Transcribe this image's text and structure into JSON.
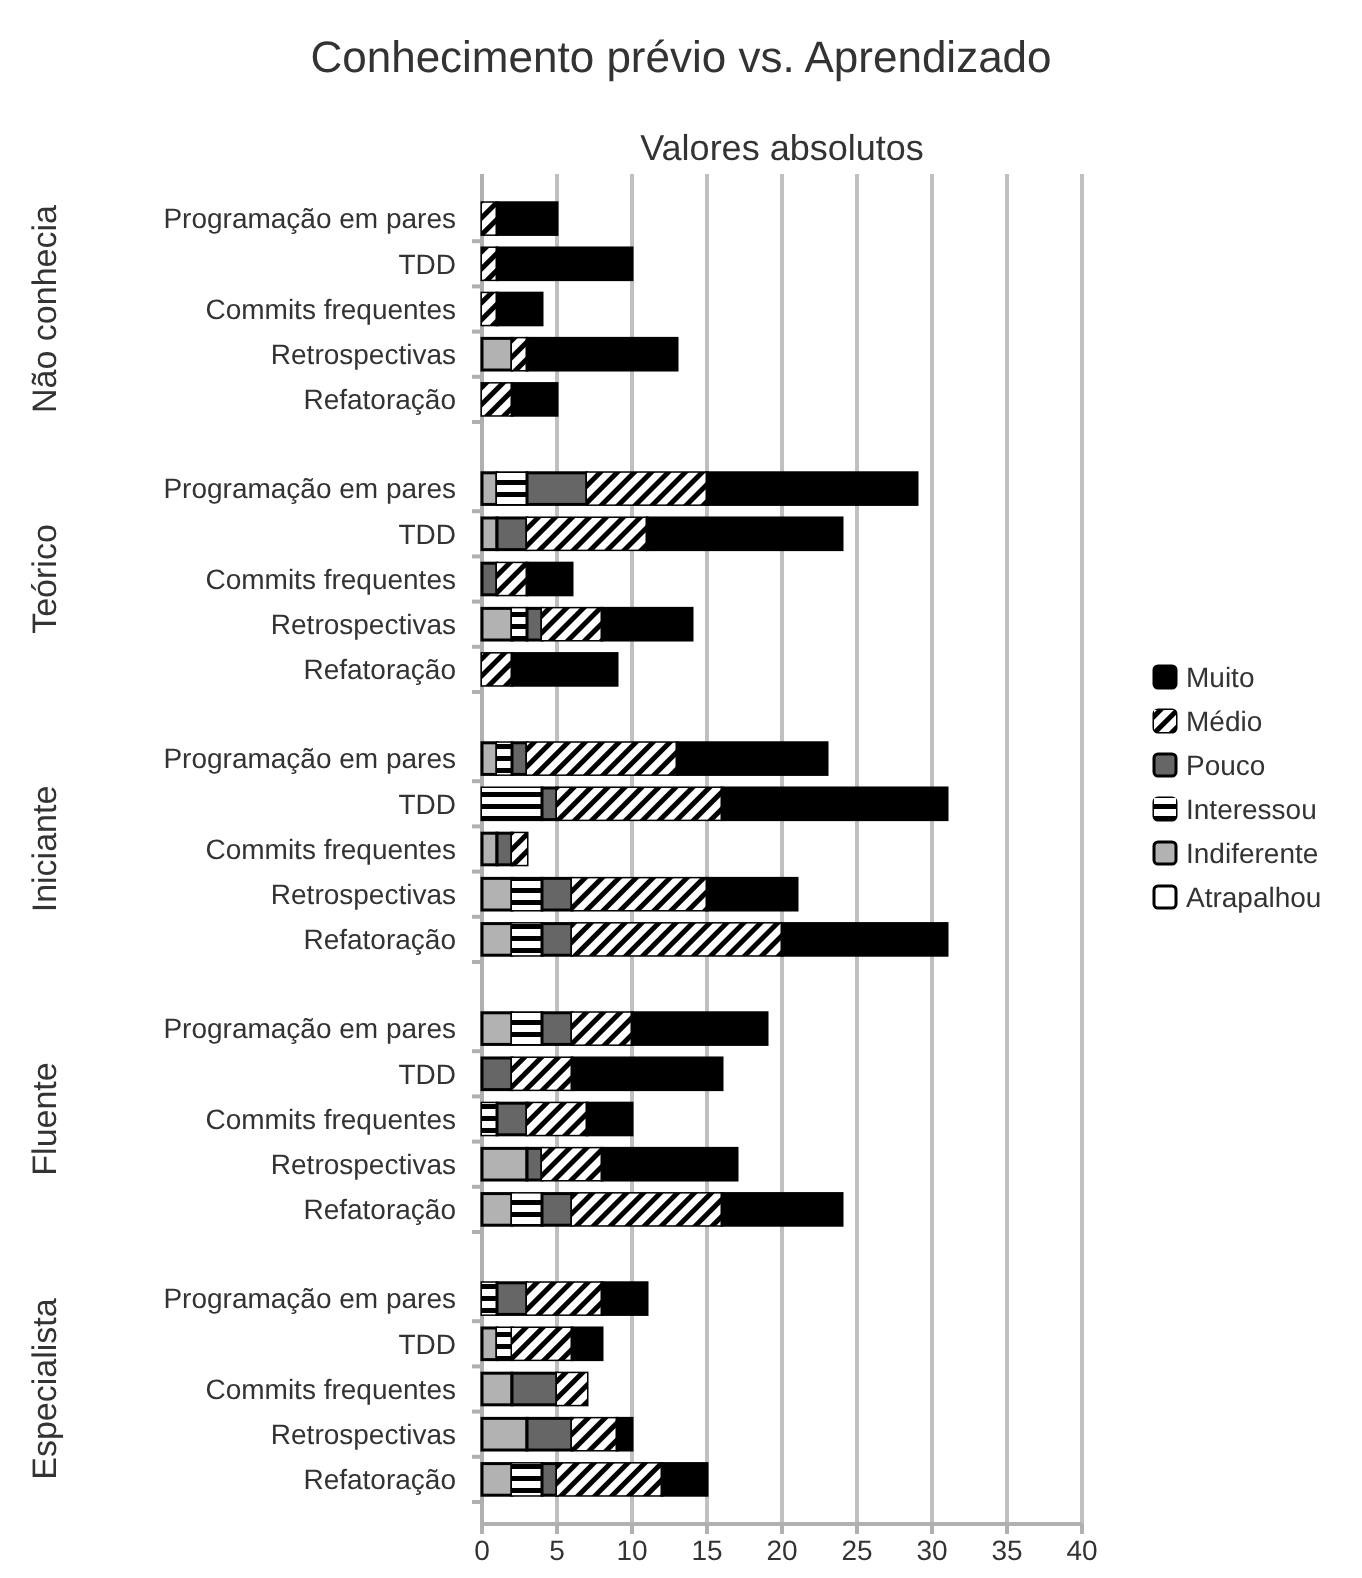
{
  "chart_data": [
    {
      "type": "bar",
      "orientation": "horizontal",
      "stacked": true,
      "title": "Conhecimento prévio vs. Aprendizado",
      "subtitle": "Valores absolutos",
      "ylabel": "Não conhecia",
      "categories": [
        "Programação em pares",
        "TDD",
        "Commits frequentes",
        "Retrospectivas",
        "Refatoração"
      ],
      "xlim": [
        0,
        40
      ],
      "xticks": [
        0,
        5,
        10,
        15,
        20,
        25,
        30,
        35,
        40
      ],
      "grid": "x",
      "tick_labels": "y",
      "series": [
        {
          "color": "#ffffff",
          "values": [
            0,
            0,
            0,
            0,
            0
          ]
        },
        {
          "color": "#b2b2b2",
          "values": [
            0,
            0,
            0,
            2,
            0
          ]
        },
        {
          "color": "#ffffff",
          "values": [
            0,
            0,
            0,
            0,
            0
          ]
        },
        {
          "color": "#666666",
          "values": [
            0,
            0,
            0,
            0,
            0
          ]
        },
        {
          "color": "#ffffff",
          "values": [
            1,
            1,
            1,
            1,
            2
          ]
        },
        {
          "color": "#000000",
          "values": [
            4,
            9,
            3,
            10,
            3
          ]
        }
      ]
    },
    {
      "type": "bar",
      "orientation": "horizontal",
      "stacked": true,
      "ylabel": "Teórico",
      "categories": [
        "Programação em pares",
        "TDD",
        "Commits frequentes",
        "Retrospectivas",
        "Refatoração"
      ],
      "xlim": [
        0,
        40
      ],
      "xticks": [
        0,
        5,
        10,
        15,
        20,
        25,
        30,
        35,
        40
      ],
      "grid": "x",
      "tick_labels": "y",
      "series": [
        {
          "color": "#ffffff",
          "values": [
            0,
            0,
            0,
            0,
            0
          ]
        },
        {
          "color": "#b2b2b2",
          "values": [
            1,
            1,
            0,
            2,
            0
          ]
        },
        {
          "color": "#ffffff",
          "values": [
            2,
            0,
            0,
            1,
            0
          ]
        },
        {
          "color": "#666666",
          "values": [
            4,
            2,
            1,
            1,
            0
          ]
        },
        {
          "color": "#ffffff",
          "values": [
            8,
            8,
            2,
            4,
            2
          ]
        },
        {
          "color": "#000000",
          "values": [
            14,
            13,
            3,
            6,
            7
          ]
        }
      ]
    },
    {
      "type": "bar",
      "orientation": "horizontal",
      "stacked": true,
      "ylabel": "Iniciante",
      "categories": [
        "Programação em pares",
        "TDD",
        "Commits frequentes",
        "Retrospectivas",
        "Refatoração"
      ],
      "xlim": [
        0,
        40
      ],
      "xticks": [
        0,
        5,
        10,
        15,
        20,
        25,
        30,
        35,
        40
      ],
      "grid": "x",
      "tick_labels": "y",
      "legend": "right",
      "series": [
        {
          "name": "Atrapalhou",
          "color": "#ffffff",
          "values": [
            0,
            0,
            0,
            0,
            0
          ]
        },
        {
          "name": "Indiferente",
          "color": "#b2b2b2",
          "values": [
            1,
            0,
            1,
            2,
            2
          ]
        },
        {
          "name": "Interessou",
          "color": "#ffffff",
          "values": [
            1,
            4,
            0,
            2,
            2
          ]
        },
        {
          "name": "Pouco",
          "color": "#666666",
          "values": [
            1,
            1,
            1,
            2,
            2
          ]
        },
        {
          "name": "Médio",
          "color": "#ffffff",
          "values": [
            10,
            11,
            1,
            9,
            14
          ]
        },
        {
          "name": "Muito",
          "color": "#000000",
          "values": [
            10,
            15,
            0,
            6,
            11
          ]
        }
      ]
    },
    {
      "type": "bar",
      "orientation": "horizontal",
      "stacked": true,
      "ylabel": "Fluente",
      "categories": [
        "Programação em pares",
        "TDD",
        "Commits frequentes",
        "Retrospectivas",
        "Refatoração"
      ],
      "xlim": [
        0,
        40
      ],
      "xticks": [
        0,
        5,
        10,
        15,
        20,
        25,
        30,
        35,
        40
      ],
      "grid": "x",
      "tick_labels": "y",
      "series": [
        {
          "color": "#ffffff",
          "values": [
            0,
            0,
            0,
            0,
            0
          ]
        },
        {
          "color": "#b2b2b2",
          "values": [
            2,
            0,
            0,
            3,
            2
          ]
        },
        {
          "color": "#ffffff",
          "values": [
            2,
            0,
            1,
            0,
            2
          ]
        },
        {
          "color": "#666666",
          "values": [
            2,
            2,
            2,
            1,
            2
          ]
        },
        {
          "color": "#ffffff",
          "values": [
            4,
            4,
            4,
            4,
            10
          ]
        },
        {
          "color": "#000000",
          "values": [
            9,
            10,
            3,
            9,
            8
          ]
        }
      ]
    },
    {
      "type": "bar",
      "orientation": "horizontal",
      "stacked": true,
      "ylabel": "Especialista",
      "categories": [
        "Programação em pares",
        "TDD",
        "Commits frequentes",
        "Retrospectivas",
        "Refatoração"
      ],
      "xlim": [
        0,
        40
      ],
      "xticks": [
        0,
        5,
        10,
        15,
        20,
        25,
        30,
        35,
        40
      ],
      "grid": "x",
      "series": [
        {
          "color": "#ffffff",
          "values": [
            0,
            0,
            0,
            0,
            0
          ]
        },
        {
          "color": "#b2b2b2",
          "values": [
            0,
            1,
            2,
            3,
            2
          ]
        },
        {
          "color": "#ffffff",
          "values": [
            1,
            1,
            0,
            0,
            2
          ]
        },
        {
          "color": "#666666",
          "values": [
            2,
            0,
            3,
            3,
            1
          ]
        },
        {
          "color": "#ffffff",
          "values": [
            5,
            4,
            2,
            3,
            7
          ]
        },
        {
          "color": "#000000",
          "values": [
            3,
            2,
            0,
            1,
            3
          ]
        }
      ]
    }
  ]
}
